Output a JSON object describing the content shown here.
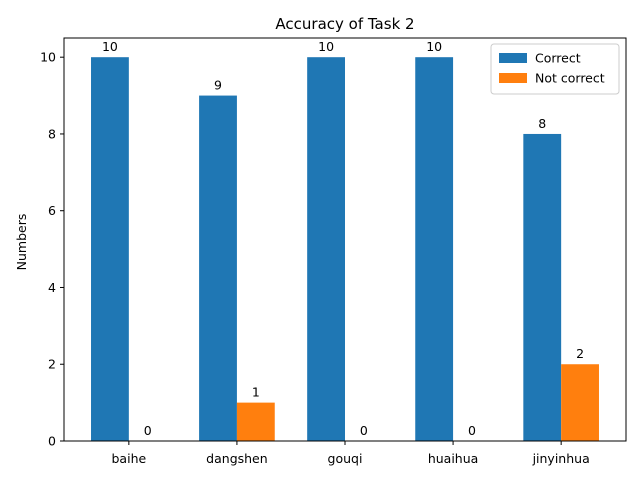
{
  "chart_data": {
    "type": "bar",
    "title": "Accuracy of Task 2",
    "xlabel": "",
    "ylabel": "Numbers",
    "categories": [
      "baihe",
      "dangshen",
      "gouqi",
      "huaihua",
      "jinyinhua"
    ],
    "series": [
      {
        "name": "Correct",
        "values": [
          10,
          9,
          10,
          10,
          8
        ],
        "color": "#1f77b4"
      },
      {
        "name": "Not correct",
        "values": [
          0,
          1,
          0,
          0,
          2
        ],
        "color": "#ff7f0e"
      }
    ],
    "ylim": [
      0,
      10.5
    ],
    "yticks": [
      0,
      2,
      4,
      6,
      8,
      10
    ],
    "grid": false,
    "legend_position": "top-right"
  }
}
